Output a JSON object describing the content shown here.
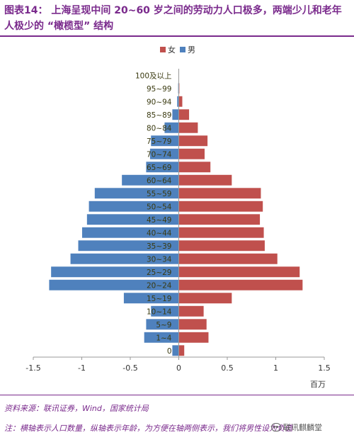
{
  "header": {
    "title": "图表14： 上海呈现中间 20~60 岁之间的劳动力人口极多，两端少儿和老年人极少的 “橄榄型” 结构"
  },
  "footer": {
    "source": "资料来源：联讯证券，Wind，国家统计局",
    "note": "注：横轴表示人口数量，纵轴表示年龄，为方便在轴两侧表示，我们将男性设为负值",
    "watermark": "联讯麒麟堂"
  },
  "chart_data": {
    "type": "bar",
    "orientation": "horizontal",
    "categories": [
      "0",
      "1~4",
      "5~9",
      "10~14",
      "15~19",
      "20~24",
      "25~29",
      "30~34",
      "35~39",
      "40~44",
      "45~49",
      "50~54",
      "55~59",
      "60~64",
      "65~69",
      "70~74",
      "75~79",
      "80~84",
      "85~89",
      "90~94",
      "95~99",
      "100及以上"
    ],
    "series": [
      {
        "name": "女",
        "color": "#c0504d",
        "values": [
          0.06,
          0.31,
          0.29,
          0.26,
          0.55,
          1.28,
          1.25,
          1.02,
          0.89,
          0.88,
          0.84,
          0.87,
          0.85,
          0.55,
          0.33,
          0.27,
          0.3,
          0.2,
          0.11,
          0.04,
          0.01,
          0.005
        ]
      },
      {
        "name": "男",
        "color": "#4f81bd",
        "values": [
          -0.07,
          -0.36,
          -0.34,
          -0.29,
          -0.57,
          -1.34,
          -1.32,
          -1.12,
          -1.04,
          -1.0,
          -0.95,
          -0.93,
          -0.87,
          -0.59,
          -0.34,
          -0.3,
          -0.29,
          -0.15,
          -0.07,
          -0.02,
          -0.01,
          -0.005
        ]
      }
    ],
    "xlim": [
      -1.5,
      1.5
    ],
    "xticks": [
      -1.5,
      -1,
      -0.5,
      0,
      0.5,
      1,
      1.5
    ],
    "xunit": "百万",
    "legend_position": "top-center",
    "grid": false
  }
}
